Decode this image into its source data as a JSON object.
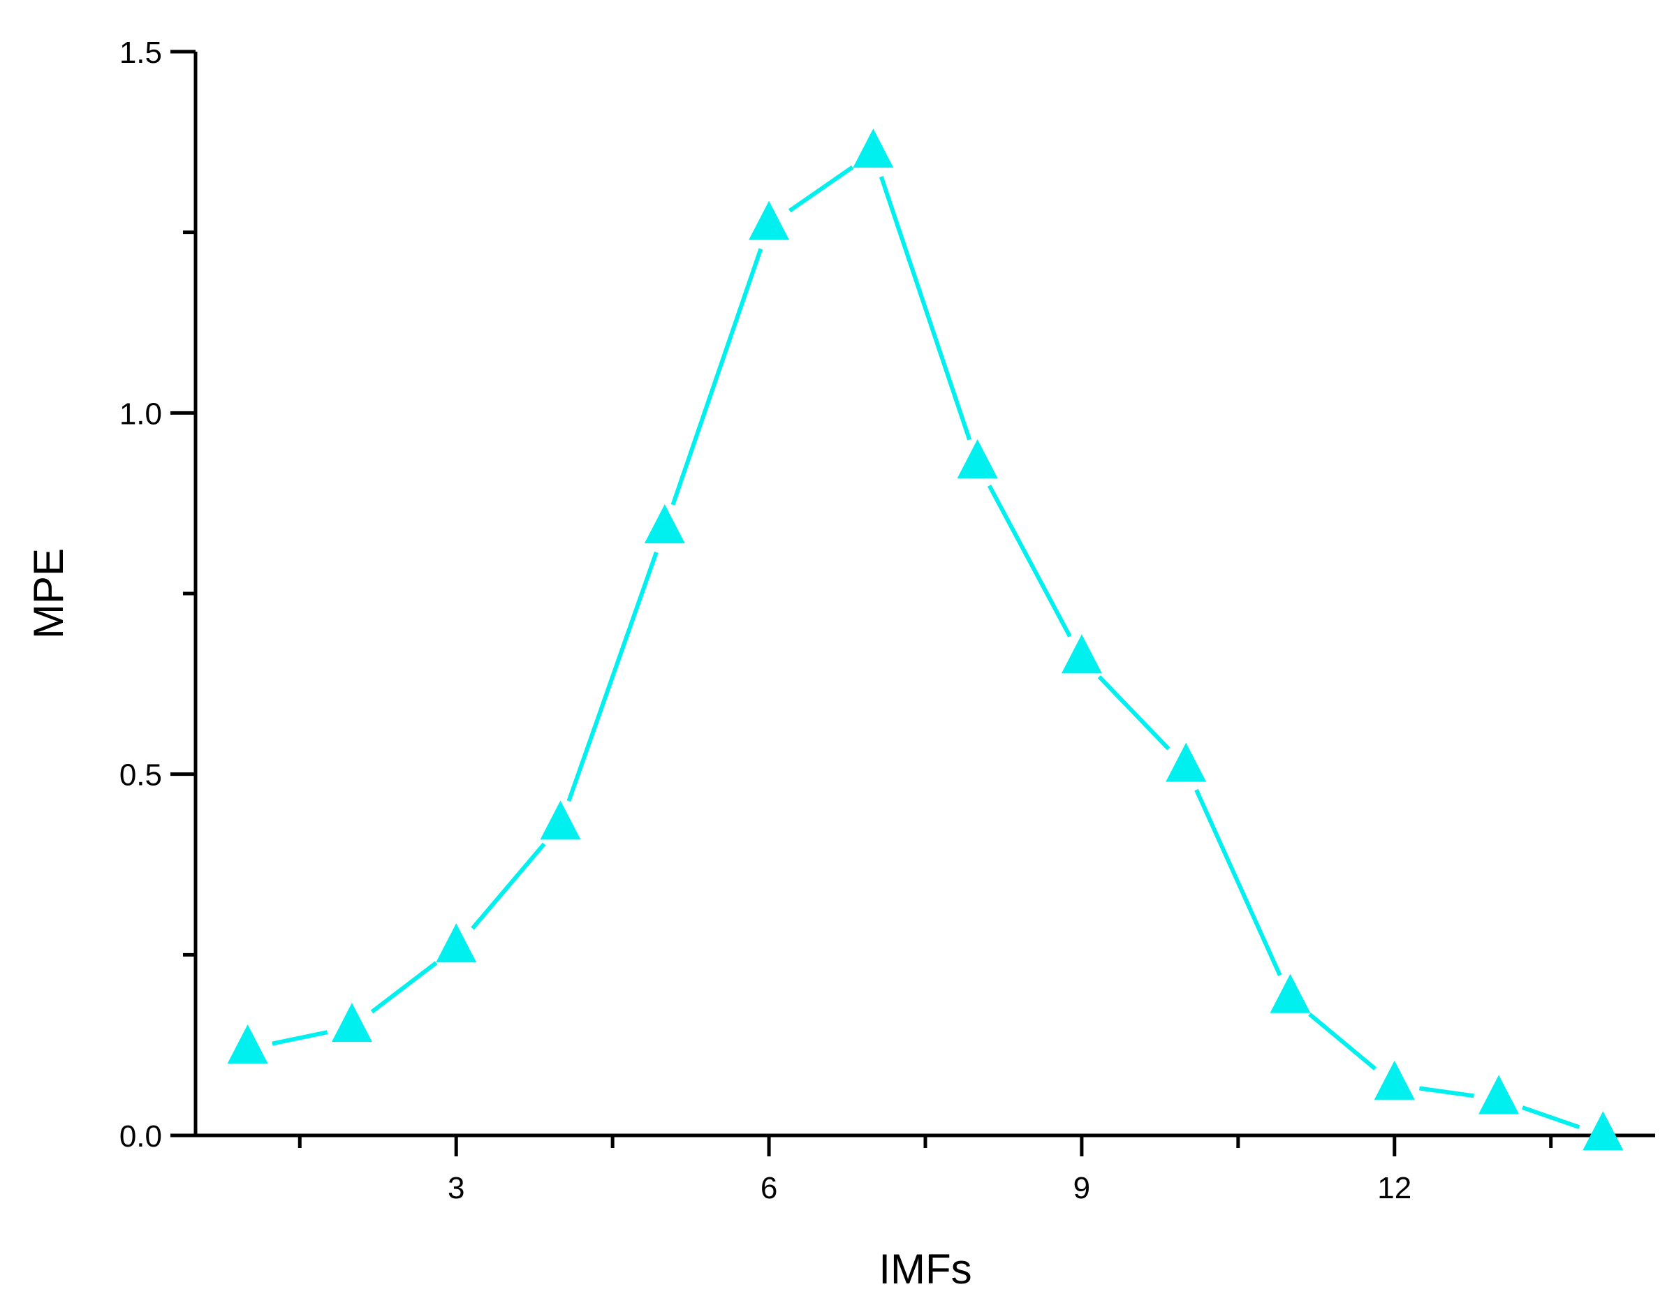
{
  "chart_data": {
    "type": "line",
    "title": "",
    "xlabel": "IMFs",
    "ylabel": "MPE",
    "x": [
      1,
      2,
      3,
      4,
      5,
      6,
      7,
      8,
      9,
      10,
      11,
      12,
      13,
      14
    ],
    "series": [
      {
        "values": [
          0.12,
          0.15,
          0.26,
          0.43,
          0.84,
          1.26,
          1.36,
          0.93,
          0.66,
          0.51,
          0.19,
          0.07,
          0.05,
          0.0
        ],
        "color": "#00f0f0",
        "marker": "triangle-up"
      }
    ],
    "xlim": [
      0.5,
      14.5
    ],
    "ylim": [
      0,
      1.5
    ],
    "x_major_ticks": [
      "3",
      "6",
      "9",
      "12"
    ],
    "x_minor_ticks": [
      1.5,
      4.5,
      7.5,
      10.5,
      13.5
    ],
    "y_major_ticks": [
      "0.0",
      "0.5",
      "1.0",
      "1.5"
    ],
    "y_minor_ticks": [
      0.25,
      0.75,
      1.25
    ],
    "grid": false,
    "legend": "none"
  }
}
